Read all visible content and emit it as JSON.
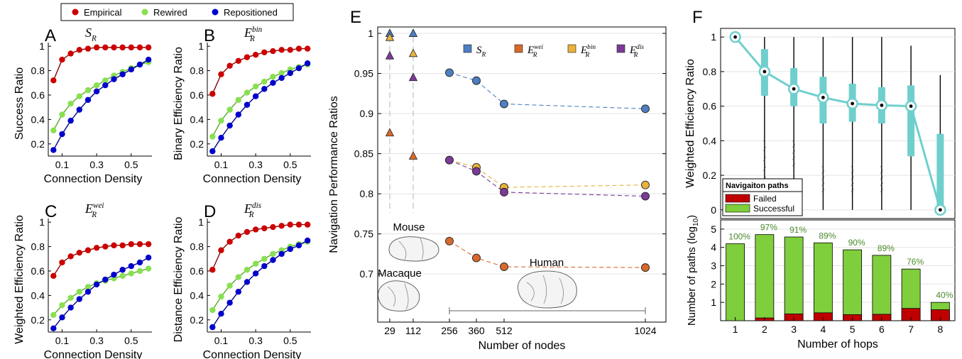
{
  "legend": {
    "entries": [
      {
        "label": "Empirical",
        "color": "#cc0000"
      },
      {
        "label": "Rewired",
        "color": "#88e050"
      },
      {
        "label": "Repositioned",
        "color": "#0000cc"
      }
    ]
  },
  "panels_small": [
    {
      "letter": "A",
      "title_main": "S",
      "title_sub": "R",
      "title_sup": "",
      "ylabel": "Success Ratio",
      "xlabel": "Connection Density",
      "yticks": [
        "1",
        "0.8",
        "0.6",
        "0.4",
        "0.2"
      ],
      "xticks": [
        "0.1",
        "0.3",
        "0.5"
      ]
    },
    {
      "letter": "B",
      "title_main": "E",
      "title_sub": "R",
      "title_sup": "bin",
      "ylabel": "Binary Efficiency Ratio",
      "xlabel": "Connection Density",
      "yticks": [
        "1",
        "0.8",
        "0.6",
        "0.4",
        "0.2"
      ],
      "xticks": [
        "0.1",
        "0.3",
        "0.5"
      ]
    },
    {
      "letter": "C",
      "title_main": "E",
      "title_sub": "R",
      "title_sup": "wei",
      "ylabel": "Weighted Efficiency Ratio",
      "xlabel": "Connection Density",
      "yticks": [
        "1",
        "0.8",
        "0.6",
        "0.4",
        "0.2"
      ],
      "xticks": [
        "0.1",
        "0.3",
        "0.5"
      ]
    },
    {
      "letter": "D",
      "title_main": "E",
      "title_sub": "R",
      "title_sup": "dis",
      "ylabel": "Distance Efficiency Ratio",
      "xlabel": "Connection Density",
      "yticks": [
        "1",
        "0.8",
        "0.6",
        "0.4",
        "0.2"
      ],
      "xticks": [
        "0.1",
        "0.3",
        "0.5"
      ]
    }
  ],
  "panel_e": {
    "letter": "E",
    "ylabel": "Navigation Performance Ratios",
    "xlabel": "Number of nodes",
    "yticks": [
      "1",
      "0.95",
      "0.9",
      "0.85",
      "0.8",
      "0.75",
      "0.7"
    ],
    "xticks": [
      "29",
      "112",
      "256",
      "360",
      "512",
      "1024"
    ],
    "legend": [
      {
        "main": "S",
        "sub": "R",
        "sup": "",
        "color": "#4d7fc1"
      },
      {
        "main": "E",
        "sub": "R",
        "sup": "wei",
        "color": "#d8692a"
      },
      {
        "main": "E",
        "sub": "R",
        "sup": "bin",
        "color": "#e8b23d"
      },
      {
        "main": "E",
        "sub": "R",
        "sup": "dis",
        "color": "#7b3b96"
      }
    ],
    "species": [
      {
        "label": "Mouse"
      },
      {
        "label": "Macaque"
      },
      {
        "label": "Human"
      }
    ]
  },
  "panel_f": {
    "letter": "F",
    "top_ylabel": "Weighted Efficiency Ratio",
    "top_yticks": [
      "1",
      "0.8",
      "0.6",
      "0.4",
      "0.2",
      "0"
    ],
    "bottom_ylabel_main": "Number of paths (log",
    "bottom_ylabel_sub": "10",
    "bottom_ylabel_end": ")",
    "bottom_yticks": [
      "5",
      "4",
      "3",
      "2",
      "1"
    ],
    "xlabel": "Number of hops",
    "xticks": [
      "1",
      "2",
      "3",
      "4",
      "5",
      "6",
      "7",
      "8"
    ],
    "legend_title": "Navigaiton paths",
    "legend_entries": [
      {
        "label": "Failed",
        "color": "#c00000"
      },
      {
        "label": "Successful",
        "color": "#7fce3c"
      }
    ],
    "pct_labels": [
      "100%",
      "97%",
      "91%",
      "89%",
      "90%",
      "89%",
      "76%",
      "40%"
    ]
  },
  "chart_data": [
    {
      "id": "A",
      "type": "line",
      "ylim": [
        0.1,
        1.03
      ],
      "xlim": [
        0.02,
        0.62
      ],
      "x": [
        0.05,
        0.1,
        0.15,
        0.2,
        0.25,
        0.3,
        0.35,
        0.4,
        0.45,
        0.5,
        0.55,
        0.6
      ],
      "series": [
        {
          "name": "Empirical",
          "values": [
            0.72,
            0.89,
            0.94,
            0.97,
            0.98,
            0.99,
            0.99,
            0.99,
            0.99,
            0.99,
            0.99,
            0.99
          ]
        },
        {
          "name": "Rewired",
          "values": [
            0.31,
            0.44,
            0.53,
            0.59,
            0.64,
            0.68,
            0.72,
            0.76,
            0.79,
            0.82,
            0.85,
            0.87
          ]
        },
        {
          "name": "Repositioned",
          "values": [
            0.15,
            0.28,
            0.39,
            0.48,
            0.56,
            0.63,
            0.68,
            0.73,
            0.77,
            0.81,
            0.85,
            0.89
          ]
        }
      ]
    },
    {
      "id": "B",
      "type": "line",
      "ylim": [
        0.1,
        1.03
      ],
      "xlim": [
        0.02,
        0.62
      ],
      "x": [
        0.05,
        0.1,
        0.15,
        0.2,
        0.25,
        0.3,
        0.35,
        0.4,
        0.45,
        0.5,
        0.55,
        0.6
      ],
      "series": [
        {
          "name": "Empirical",
          "values": [
            0.61,
            0.77,
            0.84,
            0.88,
            0.91,
            0.93,
            0.95,
            0.96,
            0.97,
            0.97,
            0.98,
            0.98
          ]
        },
        {
          "name": "Rewired",
          "values": [
            0.26,
            0.39,
            0.48,
            0.56,
            0.62,
            0.67,
            0.71,
            0.75,
            0.78,
            0.81,
            0.83,
            0.85
          ]
        },
        {
          "name": "Repositioned",
          "values": [
            0.14,
            0.25,
            0.35,
            0.44,
            0.52,
            0.59,
            0.65,
            0.7,
            0.74,
            0.78,
            0.82,
            0.86
          ]
        }
      ]
    },
    {
      "id": "C",
      "type": "line",
      "ylim": [
        0.1,
        1.03
      ],
      "xlim": [
        0.02,
        0.62
      ],
      "x": [
        0.05,
        0.1,
        0.15,
        0.2,
        0.25,
        0.3,
        0.35,
        0.4,
        0.45,
        0.5,
        0.55,
        0.6
      ],
      "series": [
        {
          "name": "Empirical",
          "values": [
            0.56,
            0.67,
            0.72,
            0.75,
            0.77,
            0.79,
            0.8,
            0.81,
            0.81,
            0.82,
            0.82,
            0.82
          ]
        },
        {
          "name": "Rewired",
          "values": [
            0.24,
            0.32,
            0.38,
            0.43,
            0.47,
            0.5,
            0.52,
            0.54,
            0.56,
            0.58,
            0.6,
            0.62
          ]
        },
        {
          "name": "Repositioned",
          "values": [
            0.13,
            0.22,
            0.3,
            0.37,
            0.43,
            0.49,
            0.53,
            0.57,
            0.61,
            0.64,
            0.67,
            0.71
          ]
        }
      ]
    },
    {
      "id": "D",
      "type": "line",
      "ylim": [
        0.1,
        1.03
      ],
      "xlim": [
        0.02,
        0.62
      ],
      "x": [
        0.05,
        0.1,
        0.15,
        0.2,
        0.25,
        0.3,
        0.35,
        0.4,
        0.45,
        0.5,
        0.55,
        0.6
      ],
      "series": [
        {
          "name": "Empirical",
          "values": [
            0.61,
            0.77,
            0.84,
            0.89,
            0.92,
            0.94,
            0.95,
            0.96,
            0.97,
            0.98,
            0.98,
            0.98
          ]
        },
        {
          "name": "Rewired",
          "values": [
            0.28,
            0.39,
            0.48,
            0.55,
            0.61,
            0.66,
            0.7,
            0.74,
            0.77,
            0.8,
            0.82,
            0.84
          ]
        },
        {
          "name": "Repositioned",
          "values": [
            0.14,
            0.25,
            0.34,
            0.43,
            0.51,
            0.58,
            0.64,
            0.69,
            0.74,
            0.78,
            0.81,
            0.85
          ]
        }
      ]
    },
    {
      "id": "E",
      "type": "scatter",
      "ylim": [
        0.64,
        1.008
      ],
      "xlabel": "Number of nodes",
      "x_categories": [
        "29",
        "112"
      ],
      "triangles": [
        {
          "series": "S_R",
          "values": [
            1.0,
            1.0
          ]
        },
        {
          "series": "E_R^bin",
          "values": [
            0.995,
            0.975
          ]
        },
        {
          "series": "E_R^dis",
          "values": [
            0.972,
            0.945
          ]
        },
        {
          "series": "E_R^wei",
          "values": [
            0.876,
            0.847
          ]
        }
      ],
      "x": [
        256,
        360,
        512,
        1024
      ],
      "series": [
        {
          "name": "S_R",
          "values": [
            0.951,
            0.941,
            0.912,
            0.906
          ]
        },
        {
          "name": "E_R^wei",
          "values": [
            0.741,
            0.72,
            0.709,
            0.708
          ]
        },
        {
          "name": "E_R^bin",
          "values": [
            0.842,
            0.833,
            0.808,
            0.811
          ]
        },
        {
          "name": "E_R^dis",
          "values": [
            0.842,
            0.828,
            0.802,
            0.797
          ]
        }
      ]
    },
    {
      "id": "F-top",
      "type": "line",
      "ylim": [
        -0.05,
        1.05
      ],
      "xlabel": "Number of hops",
      "x": [
        1,
        2,
        3,
        4,
        5,
        6,
        7,
        8
      ],
      "median": [
        1.0,
        0.8,
        0.7,
        0.65,
        0.615,
        0.605,
        0.6,
        0.0
      ],
      "box_q1": [
        1.0,
        0.66,
        0.6,
        0.5,
        0.51,
        0.5,
        0.31,
        0.0
      ],
      "box_q3": [
        1.0,
        0.93,
        0.82,
        0.77,
        0.73,
        0.71,
        0.72,
        0.44
      ],
      "whisker_low": [
        1.0,
        0.0,
        0.0,
        0.0,
        0.0,
        0.0,
        0.0,
        0.0
      ],
      "whisker_high": [
        1.0,
        1.0,
        1.0,
        1.0,
        1.0,
        1.0,
        0.95,
        0.78
      ]
    },
    {
      "id": "F-bottom",
      "type": "bar",
      "ylim": [
        0,
        5.5
      ],
      "categories": [
        "1",
        "2",
        "3",
        "4",
        "5",
        "6",
        "7",
        "8"
      ],
      "series": [
        {
          "name": "Successful",
          "values": [
            4.2,
            4.7,
            4.57,
            4.25,
            3.87,
            3.57,
            2.82,
            1.0
          ]
        },
        {
          "name": "Failed",
          "values": [
            0.0,
            0.15,
            0.37,
            0.43,
            0.33,
            0.35,
            0.67,
            0.6
          ]
        }
      ],
      "percent_successful": [
        "100%",
        "97%",
        "91%",
        "89%",
        "90%",
        "89%",
        "76%",
        "40%"
      ]
    }
  ]
}
